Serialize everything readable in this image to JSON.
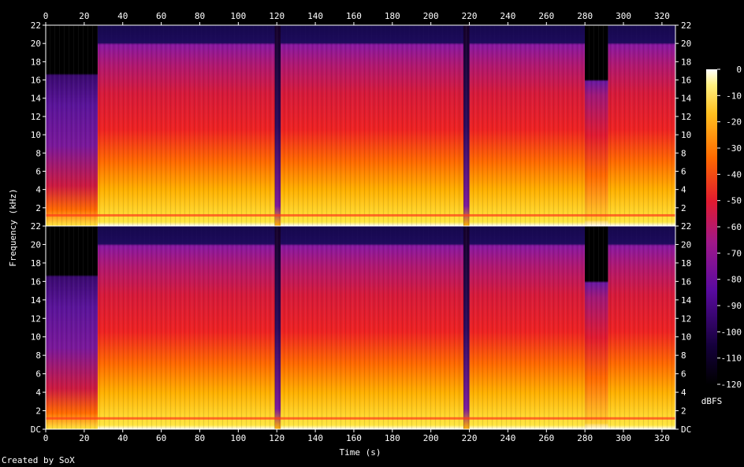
{
  "chart_data": {
    "type": "heatmap",
    "title": "",
    "xlabel": "Time (s)",
    "ylabel": "Frequency (kHz)",
    "xlim": [
      0,
      327
    ],
    "ylim": [
      0,
      22
    ],
    "x_ticks": [
      "0",
      "20",
      "40",
      "60",
      "80",
      "100",
      "120",
      "140",
      "160",
      "180",
      "200",
      "220",
      "240",
      "260",
      "280",
      "300",
      "320"
    ],
    "y_ticks": [
      "DC",
      "2",
      "4",
      "6",
      "8",
      "10",
      "12",
      "14",
      "16",
      "18",
      "20",
      "22"
    ],
    "y_ticks_top": [
      "2",
      "4",
      "6",
      "8",
      "10",
      "12",
      "14",
      "16",
      "18",
      "20",
      "22"
    ],
    "channels": 2,
    "colorbar": {
      "label": "dBFS",
      "range": [
        -120,
        0
      ],
      "ticks": [
        "0",
        "-10",
        "-20",
        "-30",
        "-40",
        "-50",
        "-60",
        "-70",
        "-80",
        "-90",
        "-100",
        "-110",
        "-120"
      ]
    },
    "colors": {
      "background": "#000000",
      "low": "#1a0033",
      "mid_low": "#7a14a0",
      "mid": "#e01a1a",
      "mid_high": "#ff8c00",
      "high": "#ffe640",
      "max": "#ffffff"
    },
    "segments_s": [
      {
        "start": 0,
        "end": 27,
        "cutoff_khz": 16.5,
        "level": "quiet"
      },
      {
        "start": 27,
        "end": 119,
        "cutoff_khz": 20,
        "level": "loud"
      },
      {
        "start": 119,
        "end": 122,
        "cutoff_khz": 20,
        "level": "gap"
      },
      {
        "start": 122,
        "end": 217,
        "cutoff_khz": 20,
        "level": "loud"
      },
      {
        "start": 217,
        "end": 220,
        "cutoff_khz": 20,
        "level": "gap"
      },
      {
        "start": 220,
        "end": 280,
        "cutoff_khz": 20,
        "level": "loud"
      },
      {
        "start": 280,
        "end": 292,
        "cutoff_khz": 16,
        "level": "mid"
      },
      {
        "start": 292,
        "end": 327,
        "cutoff_khz": 20,
        "level": "loud"
      }
    ]
  },
  "credit": "Created by SoX"
}
